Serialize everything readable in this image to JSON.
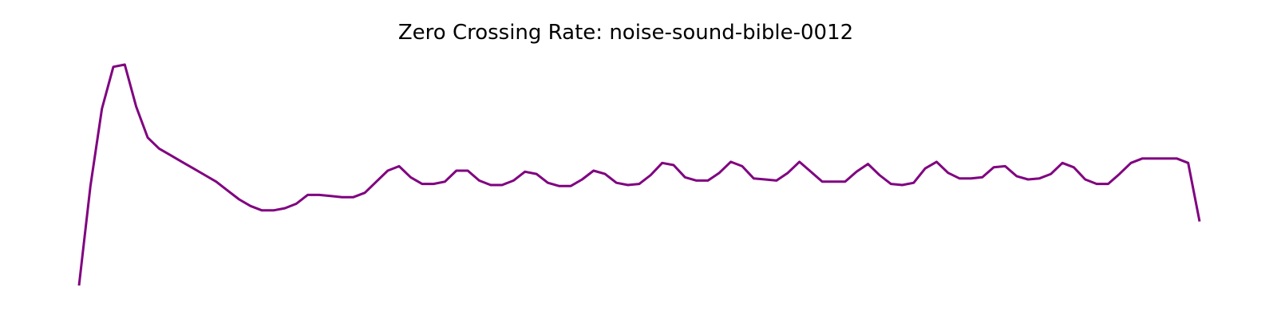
{
  "chart_data": {
    "type": "line",
    "title": "Zero Crossing Rate: noise-sound-bible-0012",
    "xlabel": "",
    "ylabel": "",
    "axes_visible": false,
    "grid": false,
    "legend": "none",
    "x": [
      0,
      1,
      2,
      3,
      4,
      5,
      6,
      7,
      8,
      9,
      10,
      11,
      12,
      13,
      14,
      15,
      16,
      17,
      18,
      19,
      20,
      21,
      22,
      23,
      24,
      25,
      26,
      27,
      28,
      29,
      30,
      31,
      32,
      33,
      34,
      35,
      36,
      37,
      38,
      39,
      40,
      41,
      42,
      43,
      44,
      45,
      46,
      47,
      48,
      49,
      50,
      51,
      52,
      53,
      54,
      55,
      56,
      57,
      58,
      59,
      60,
      61,
      62,
      63,
      64,
      65,
      66,
      67,
      68,
      69,
      70,
      71,
      72,
      73,
      74,
      75,
      76,
      77,
      78,
      79,
      80,
      81,
      82,
      83,
      84,
      85,
      86,
      87,
      88,
      89,
      90,
      91,
      92,
      93,
      94,
      95,
      96,
      97,
      98
    ],
    "ylim": [
      0,
      1
    ],
    "series": [
      {
        "color": "#800080",
        "values": [
          0.0,
          0.45,
          0.8,
          0.99,
          1.0,
          0.81,
          0.67,
          0.62,
          0.59,
          0.56,
          0.53,
          0.5,
          0.47,
          0.43,
          0.39,
          0.36,
          0.34,
          0.34,
          0.35,
          0.37,
          0.41,
          0.41,
          0.405,
          0.4,
          0.4,
          0.42,
          0.47,
          0.52,
          0.54,
          0.49,
          0.46,
          0.46,
          0.47,
          0.52,
          0.52,
          0.475,
          0.455,
          0.455,
          0.475,
          0.515,
          0.505,
          0.465,
          0.45,
          0.45,
          0.48,
          0.52,
          0.505,
          0.465,
          0.455,
          0.46,
          0.5,
          0.555,
          0.545,
          0.49,
          0.475,
          0.475,
          0.51,
          0.56,
          0.54,
          0.485,
          0.48,
          0.475,
          0.51,
          0.56,
          0.515,
          0.47,
          0.47,
          0.47,
          0.515,
          0.55,
          0.5,
          0.46,
          0.455,
          0.465,
          0.53,
          0.56,
          0.51,
          0.485,
          0.485,
          0.49,
          0.535,
          0.54,
          0.495,
          0.48,
          0.485,
          0.505,
          0.555,
          0.535,
          0.48,
          0.46,
          0.46,
          0.505,
          0.555,
          0.575,
          0.575,
          0.575,
          0.575,
          0.555,
          0.29
        ]
      }
    ]
  }
}
